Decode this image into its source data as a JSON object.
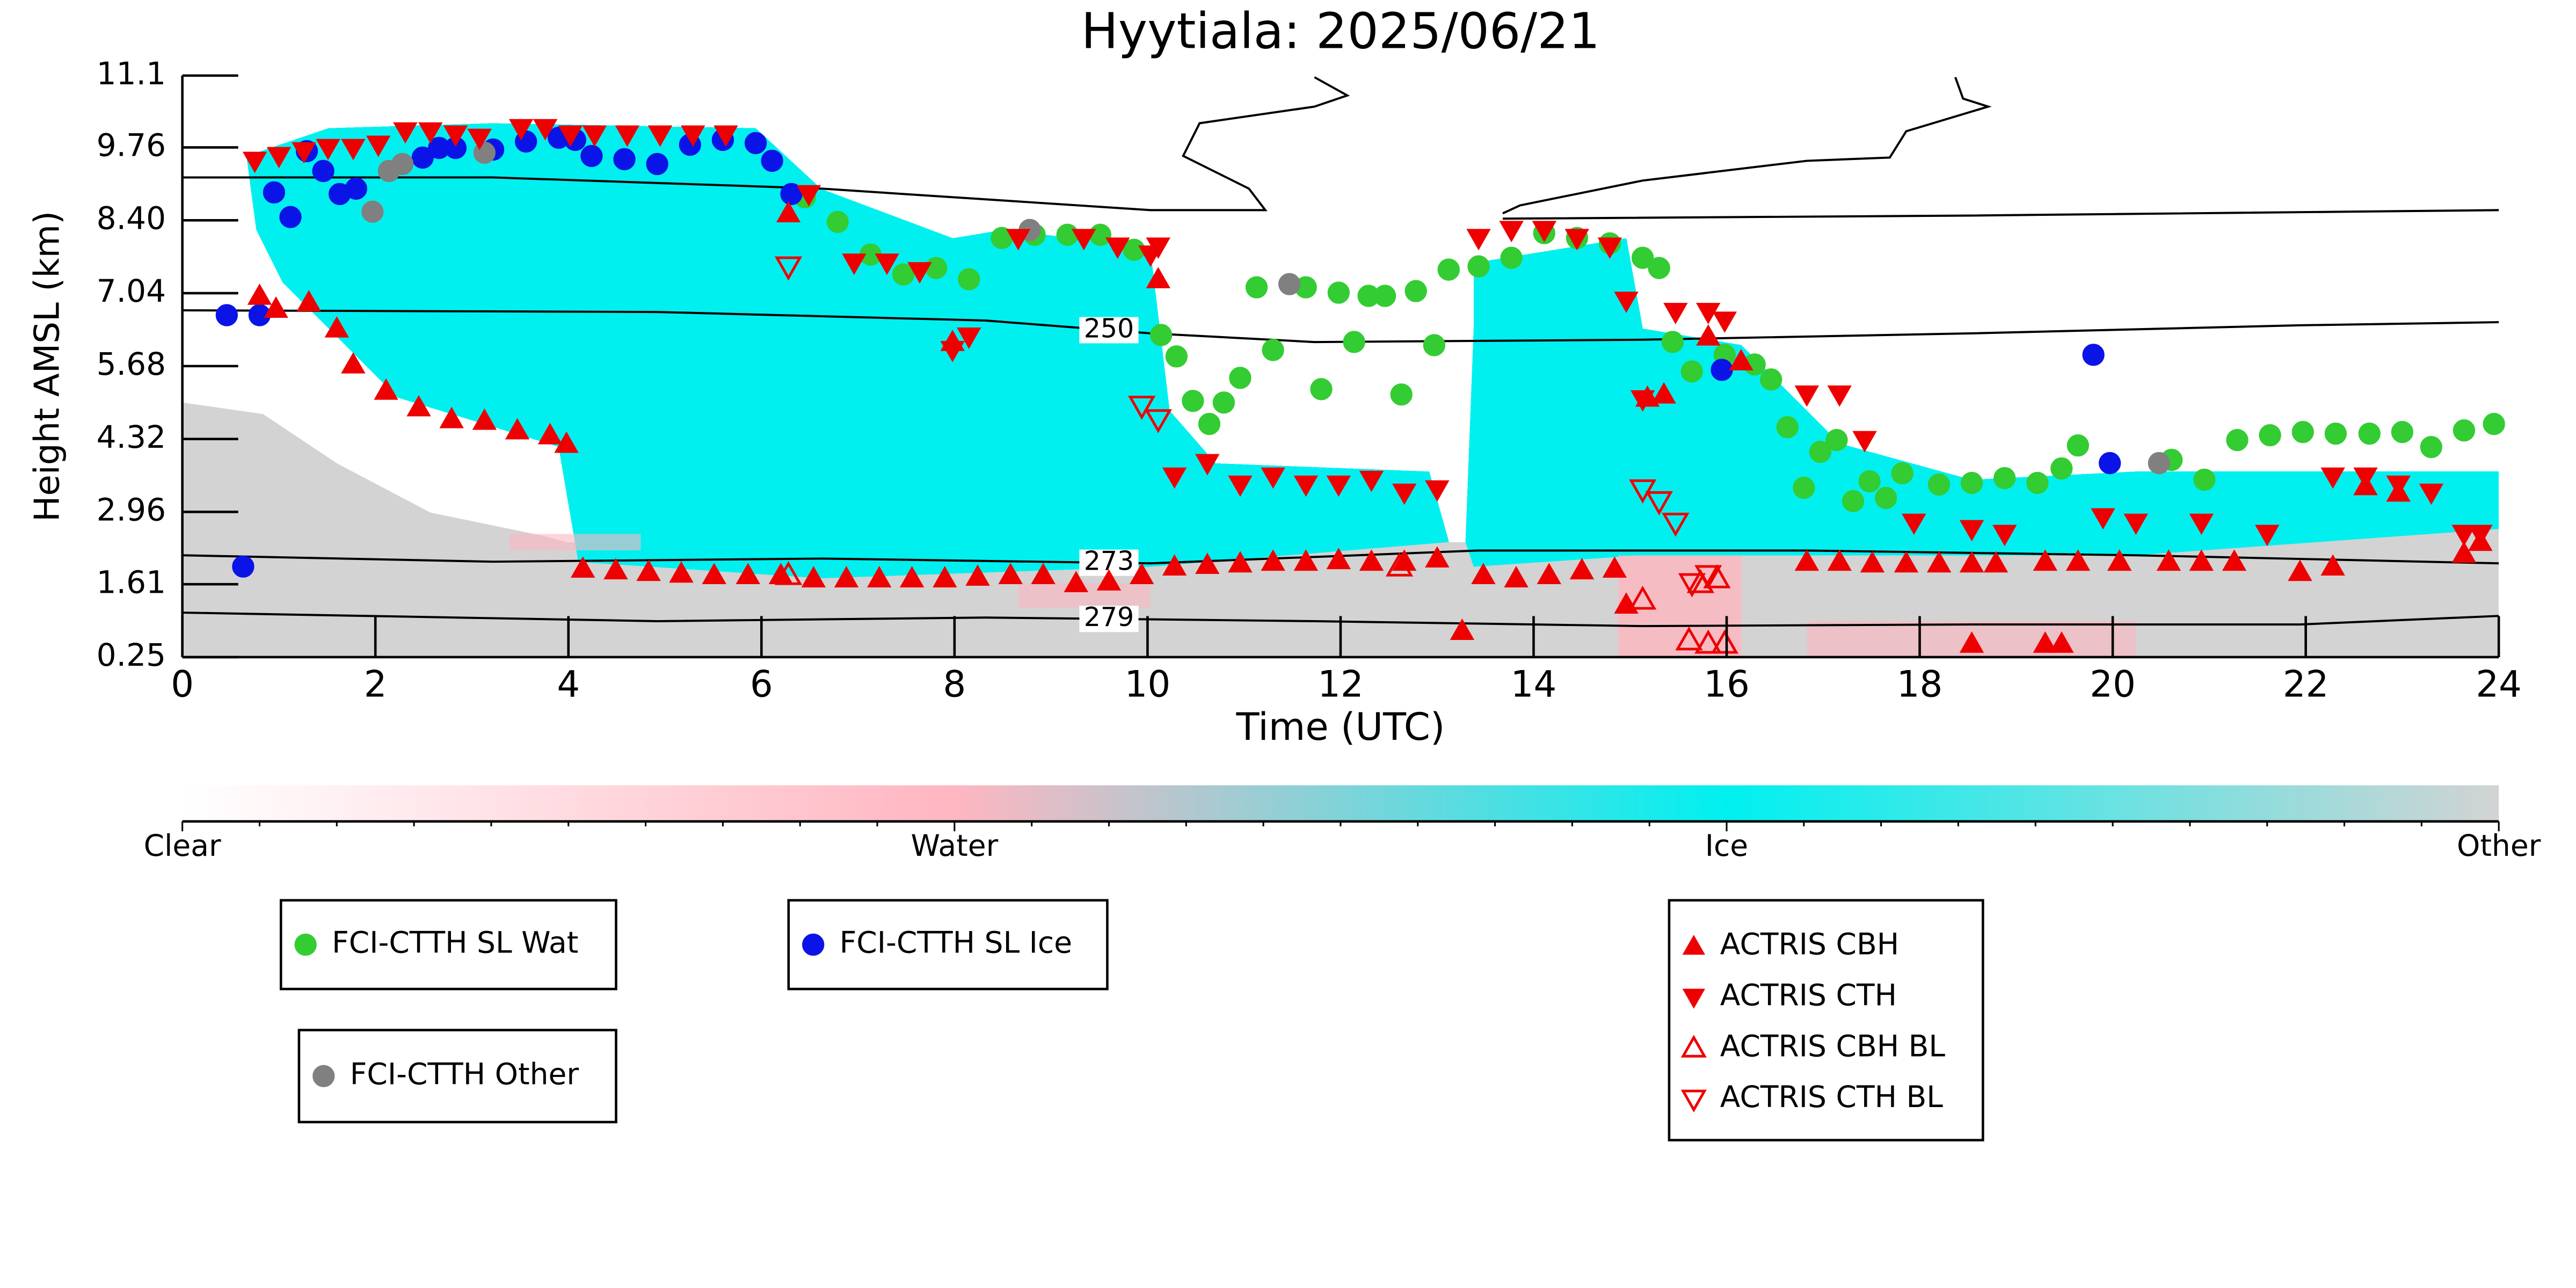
{
  "chart_data": {
    "type": "scatter",
    "title": "Hyytiala: 2025/06/21",
    "xlabel": "Time (UTC)",
    "ylabel": "Height AMSL (km)",
    "xlim": [
      0,
      24
    ],
    "xticks": [
      0,
      2,
      4,
      6,
      8,
      10,
      12,
      14,
      16,
      18,
      20,
      22,
      24
    ],
    "ylim": [
      0.25,
      11.1
    ],
    "yticks": [
      0.25,
      1.61,
      2.96,
      4.32,
      5.68,
      7.04,
      {
        "value": 8.4,
        "label": "8.40"
      },
      9.76,
      11.1
    ],
    "colorbar": {
      "labels": [
        "Clear",
        "Water",
        "Ice",
        "Other"
      ],
      "colors": [
        "#ffffff",
        "#ffb6c1",
        "#00f0f0",
        "#d3d3d3"
      ]
    },
    "contours": [
      {
        "level": 250,
        "x": [
          0,
          4.92,
          8.32,
          10.03,
          11.73,
          15.13,
          18.54,
          21.94,
          24
        ],
        "y": [
          6.72,
          6.69,
          6.53,
          6.29,
          6.13,
          6.17,
          6.29,
          6.44,
          6.5
        ]
      },
      {
        "level": 273,
        "x": [
          0,
          3.22,
          6.62,
          10.03,
          13.43,
          16.83,
          20.24,
          24
        ],
        "y": [
          2.15,
          2.03,
          2.09,
          2.0,
          2.24,
          2.24,
          2.15,
          2.0
        ]
      },
      {
        "level": 279,
        "x": [
          0,
          4.92,
          8.32,
          11.73,
          15.13,
          18.54,
          21.94,
          24
        ],
        "y": [
          1.08,
          0.92,
          0.99,
          0.92,
          0.83,
          0.86,
          0.86,
          1.02
        ]
      },
      {
        "x": [
          0,
          3.22,
          6.62,
          10.03,
          11.22,
          11.05,
          10.37,
          10.54,
          11.73,
          12.07,
          11.73
        ],
        "y": [
          9.2,
          9.2,
          8.99,
          8.59,
          8.59,
          8.99,
          9.6,
          10.21,
          10.52,
          10.73,
          11.07
        ]
      },
      {
        "x": [
          13.68,
          13.86,
          15.13,
          16.83,
          17.69,
          17.86,
          18.54,
          18.71,
          18.45,
          18.37
        ],
        "y": [
          8.53,
          8.68,
          9.14,
          9.51,
          9.57,
          10.06,
          10.43,
          10.52,
          10.67,
          11.07
        ]
      },
      {
        "x": [
          13.68,
          18.54,
          24
        ],
        "y": [
          8.43,
          8.49,
          8.59
        ]
      }
    ],
    "series": [
      {
        "name": "FCI-CTTH SL Wat",
        "color": "#33cc33",
        "marker": "circle",
        "filled": true,
        "x": [
          6.45,
          6.79,
          7.13,
          7.47,
          7.81,
          8.15,
          8.49,
          8.83,
          9.17,
          9.51,
          9.86,
          10.14,
          10.3,
          10.47,
          10.64,
          10.79,
          10.96,
          11.13,
          11.3,
          11.64,
          11.8,
          11.98,
          12.14,
          12.29,
          12.46,
          12.63,
          12.78,
          12.97,
          13.12,
          13.43,
          13.77,
          14.11,
          14.45,
          14.79,
          15.13,
          15.3,
          15.44,
          15.64,
          15.98,
          16.29,
          16.46,
          16.63,
          16.8,
          16.97,
          17.14,
          17.31,
          17.48,
          17.65,
          17.82,
          18.2,
          18.54,
          18.88,
          19.22,
          19.47,
          19.64,
          20.61,
          20.95,
          21.29,
          21.63,
          21.97,
          22.31,
          22.66,
          23.0,
          23.3,
          23.64,
          23.95
        ],
        "y": [
          8.83,
          8.37,
          7.76,
          7.39,
          7.51,
          7.3,
          8.07,
          8.13,
          8.13,
          8.13,
          7.85,
          6.26,
          5.86,
          5.03,
          4.6,
          5.0,
          5.46,
          7.15,
          5.98,
          7.15,
          5.25,
          7.05,
          6.13,
          6.99,
          6.99,
          5.15,
          7.08,
          6.07,
          7.48,
          7.54,
          7.7,
          8.16,
          8.07,
          7.97,
          7.7,
          7.51,
          6.13,
          5.58,
          5.89,
          5.71,
          5.43,
          4.54,
          3.41,
          4.08,
          4.3,
          3.16,
          3.53,
          3.22,
          3.68,
          3.47,
          3.5,
          3.59,
          3.5,
          3.77,
          4.2,
          3.93,
          3.56,
          4.3,
          4.39,
          4.45,
          4.42,
          4.42,
          4.45,
          4.17,
          4.48,
          4.6
        ]
      },
      {
        "name": "FCI-CTTH SL Ice",
        "color": "#0a14e6",
        "marker": "circle",
        "filled": true,
        "x": [
          0.46,
          0.63,
          0.8,
          0.95,
          1.12,
          1.29,
          1.46,
          1.63,
          1.8,
          2.49,
          2.66,
          2.83,
          3.22,
          3.56,
          3.9,
          4.07,
          4.24,
          4.58,
          4.92,
          5.26,
          5.6,
          5.94,
          6.11,
          6.31,
          15.95,
          19.8,
          19.97
        ],
        "y": [
          6.63,
          1.94,
          6.63,
          8.92,
          8.46,
          9.69,
          9.32,
          8.89,
          8.99,
          9.57,
          9.75,
          9.75,
          9.72,
          9.87,
          9.94,
          9.9,
          9.6,
          9.54,
          9.45,
          9.81,
          9.9,
          9.84,
          9.51,
          8.89,
          5.61,
          5.89,
          3.87
        ]
      },
      {
        "name": "FCI-CTTH Other",
        "color": "#808080",
        "marker": "circle",
        "filled": true,
        "x": [
          1.97,
          2.14,
          2.28,
          3.13,
          8.78,
          11.47,
          20.48
        ],
        "y": [
          8.56,
          9.32,
          9.45,
          9.66,
          8.22,
          7.21,
          3.87
        ]
      },
      {
        "name": "ACTRIS CBH",
        "color": "#ee0000",
        "marker": "triangle-up",
        "filled": true,
        "x": [
          0.8,
          0.97,
          1.31,
          1.6,
          1.77,
          2.11,
          2.45,
          2.79,
          3.13,
          3.47,
          3.81,
          3.98,
          4.15,
          4.49,
          4.83,
          5.17,
          5.51,
          5.86,
          6.2,
          6.54,
          6.88,
          7.22,
          7.56,
          7.9,
          8.24,
          8.58,
          8.92,
          9.26,
          9.6,
          9.94,
          10.28,
          10.62,
          10.96,
          11.3,
          11.64,
          11.98,
          12.32,
          12.66,
          13.0,
          13.48,
          13.82,
          14.16,
          14.5,
          14.84,
          14.96,
          13.26,
          15.18,
          15.35,
          16.83,
          17.17,
          17.51,
          17.86,
          18.2,
          18.54,
          18.79,
          19.3,
          19.64,
          20.07,
          20.58,
          20.92,
          21.26,
          21.94,
          22.28,
          22.62,
          22.96,
          23.64,
          23.81,
          18.54,
          19.3,
          19.47,
          10.11,
          7.98,
          6.28,
          16.15,
          15.81
        ],
        "y": [
          6.99,
          6.75,
          6.87,
          6.38,
          5.71,
          5.22,
          4.91,
          4.69,
          4.66,
          4.48,
          4.39,
          4.23,
          1.9,
          1.87,
          1.84,
          1.81,
          1.78,
          1.78,
          1.78,
          1.72,
          1.72,
          1.72,
          1.72,
          1.72,
          1.75,
          1.78,
          1.78,
          1.63,
          1.66,
          1.78,
          1.94,
          1.97,
          2.0,
          2.03,
          2.03,
          2.06,
          2.03,
          2.03,
          2.09,
          1.78,
          1.72,
          1.78,
          1.87,
          1.9,
          1.23,
          0.74,
          5.09,
          5.15,
          2.03,
          2.03,
          2.0,
          2.0,
          2.0,
          2.0,
          2.0,
          2.03,
          2.03,
          2.03,
          2.03,
          2.03,
          2.03,
          1.84,
          1.94,
          3.44,
          3.32,
          2.18,
          2.4,
          0.5,
          0.5,
          0.5,
          7.3,
          6.13,
          8.53,
          5.77,
          6.23
        ]
      },
      {
        "name": "ACTRIS CTH",
        "color": "#ee0000",
        "marker": "triangle-down",
        "filled": true,
        "x": [
          0.75,
          1.0,
          1.26,
          1.51,
          1.77,
          2.03,
          2.31,
          2.57,
          2.83,
          3.08,
          3.51,
          3.76,
          4.02,
          4.27,
          4.61,
          4.95,
          5.29,
          5.63,
          6.49,
          6.96,
          7.3,
          7.64,
          7.98,
          8.15,
          8.66,
          9.34,
          9.69,
          10.03,
          10.11,
          10.28,
          10.62,
          10.96,
          11.3,
          11.64,
          11.98,
          12.32,
          12.66,
          13.0,
          13.43,
          13.77,
          14.11,
          14.45,
          14.79,
          14.96,
          15.13,
          15.47,
          15.81,
          15.98,
          16.83,
          17.17,
          17.43,
          17.94,
          18.54,
          18.88,
          19.9,
          20.24,
          20.92,
          21.6,
          22.28,
          22.62,
          22.96,
          23.3,
          23.64,
          23.81
        ],
        "y": [
          9.51,
          9.6,
          9.69,
          9.75,
          9.75,
          9.81,
          10.06,
          10.06,
          10.0,
          9.94,
          10.12,
          10.12,
          10.0,
          10.0,
          10.0,
          10.0,
          10.0,
          10.0,
          8.89,
          7.61,
          7.61,
          7.45,
          5.98,
          6.23,
          8.07,
          8.07,
          7.91,
          7.76,
          7.91,
          3.62,
          3.87,
          3.47,
          3.62,
          3.47,
          3.47,
          3.56,
          3.32,
          3.38,
          8.07,
          8.22,
          8.22,
          8.07,
          7.91,
          6.9,
          5.06,
          6.69,
          6.69,
          6.53,
          5.15,
          5.15,
          4.3,
          2.76,
          2.64,
          2.55,
          2.86,
          2.76,
          2.76,
          2.55,
          3.62,
          3.62,
          3.47,
          3.32,
          2.55,
          2.55
        ]
      },
      {
        "name": "ACTRIS CBH BL",
        "color": "#ee0000",
        "marker": "triangle-up",
        "filled": false,
        "x": [
          6.28,
          15.13,
          15.61,
          15.81,
          15.98,
          15.73,
          15.9,
          12.61
        ],
        "y": [
          1.78,
          1.32,
          0.56,
          0.5,
          0.5,
          1.63,
          1.72,
          1.94
        ]
      },
      {
        "name": "ACTRIS CTH BL",
        "color": "#ee0000",
        "marker": "triangle-down",
        "filled": false,
        "x": [
          6.28,
          9.94,
          10.11,
          15.13,
          15.3,
          15.47,
          15.64,
          15.81
        ],
        "y": [
          7.54,
          4.94,
          4.69,
          3.38,
          3.16,
          2.76,
          1.63,
          1.78
        ]
      }
    ]
  }
}
